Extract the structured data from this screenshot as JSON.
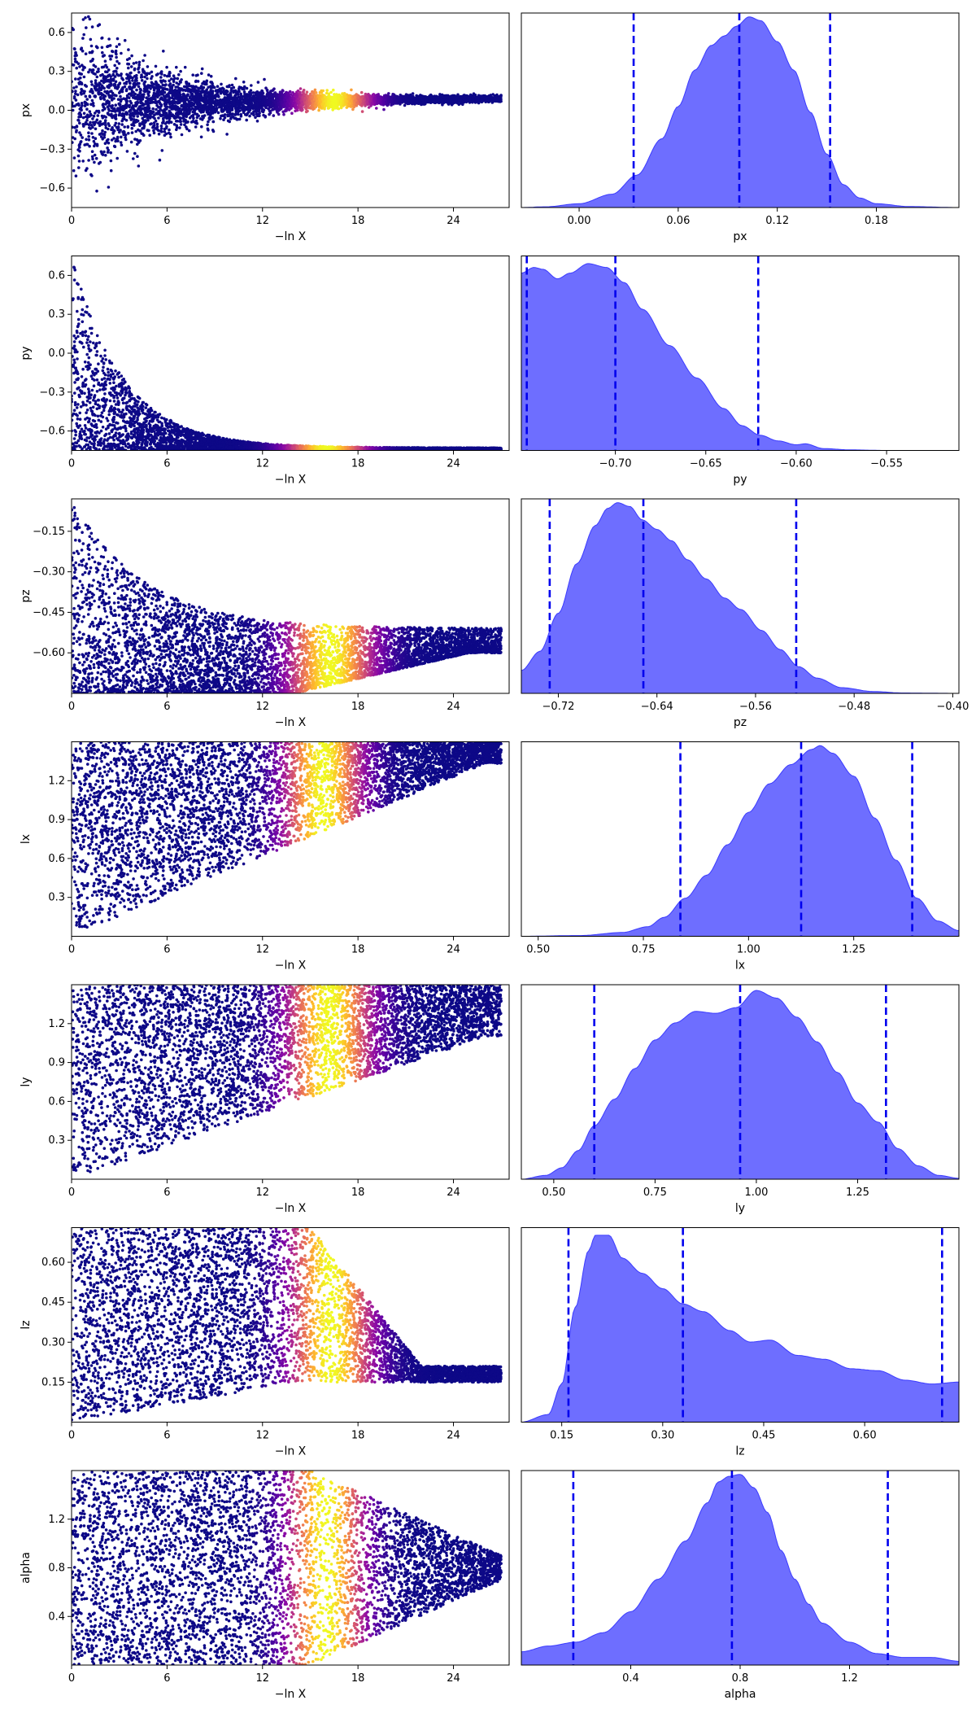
{
  "colors": {
    "kde_fill": "#6666ff",
    "kde_edge": "#3b3bff",
    "quantile_line": "#0000ee",
    "trace_low": "#1a0a80",
    "colormap": "plasma"
  },
  "chart_data": [
    {
      "type": "scatter",
      "param": "px",
      "xlabel": "−ln X",
      "ylabel": "px",
      "x_range": [
        0,
        27.5
      ],
      "y_range": [
        -0.75,
        0.75
      ],
      "xticks": [
        0,
        6,
        12,
        18,
        24
      ],
      "yticks": [
        -0.6,
        -0.3,
        0.0,
        0.3,
        0.6
      ],
      "ytick_labels": [
        "−0.6",
        "−0.3",
        "0.0",
        "0.3",
        "0.6"
      ],
      "shape": {
        "center_start": 0.05,
        "center_end": 0.09,
        "spread_start": 0.75,
        "spread_end": 0.02,
        "decay": 5.5,
        "shape": "funnel"
      },
      "color_peak": 16.5,
      "color_width": 2.2
    },
    {
      "type": "area",
      "param": "px",
      "xlabel": "px",
      "x_range": [
        -0.035,
        0.23
      ],
      "xticks": [
        0.0,
        0.06,
        0.12,
        0.18
      ],
      "xtick_labels": [
        "0.00",
        "0.06",
        "0.12",
        "0.18"
      ],
      "quantiles": [
        0.033,
        0.097,
        0.152
      ],
      "density_profile": [
        [
          -0.035,
          0.0
        ],
        [
          -0.02,
          0.004
        ],
        [
          0.0,
          0.02
        ],
        [
          0.02,
          0.07
        ],
        [
          0.035,
          0.17
        ],
        [
          0.05,
          0.36
        ],
        [
          0.06,
          0.53
        ],
        [
          0.07,
          0.72
        ],
        [
          0.08,
          0.85
        ],
        [
          0.088,
          0.9
        ],
        [
          0.095,
          0.95
        ],
        [
          0.103,
          1.0
        ],
        [
          0.11,
          0.98
        ],
        [
          0.12,
          0.87
        ],
        [
          0.13,
          0.72
        ],
        [
          0.14,
          0.5
        ],
        [
          0.15,
          0.28
        ],
        [
          0.16,
          0.12
        ],
        [
          0.17,
          0.05
        ],
        [
          0.18,
          0.02
        ],
        [
          0.2,
          0.005
        ],
        [
          0.23,
          0.0
        ]
      ]
    },
    {
      "type": "scatter",
      "param": "py",
      "xlabel": "−ln X",
      "ylabel": "py",
      "x_range": [
        0,
        27.5
      ],
      "y_range": [
        -0.75,
        0.75
      ],
      "xticks": [
        0,
        6,
        12,
        18,
        24
      ],
      "yticks": [
        -0.6,
        -0.3,
        0.0,
        0.3,
        0.6
      ],
      "ytick_labels": [
        "−0.6",
        "−0.3",
        "0.0",
        "0.3",
        "0.6"
      ],
      "shape": {
        "upper_start": 0.75,
        "upper_end": -0.73,
        "decay": 3.2,
        "lower": -0.75,
        "shape": "decay"
      },
      "color_peak": 16.0,
      "color_width": 2.4
    },
    {
      "type": "area",
      "param": "py",
      "xlabel": "py",
      "x_range": [
        -0.752,
        -0.51
      ],
      "xticks": [
        -0.7,
        -0.65,
        -0.6,
        -0.55
      ],
      "xtick_labels": [
        "−0.70",
        "−0.65",
        "−0.60",
        "−0.55"
      ],
      "quantiles": [
        -0.749,
        -0.7,
        -0.621
      ],
      "density_profile": [
        [
          -0.752,
          0.93
        ],
        [
          -0.745,
          0.96
        ],
        [
          -0.74,
          0.95
        ],
        [
          -0.732,
          0.9
        ],
        [
          -0.725,
          0.93
        ],
        [
          -0.715,
          0.98
        ],
        [
          -0.705,
          0.96
        ],
        [
          -0.695,
          0.88
        ],
        [
          -0.685,
          0.74
        ],
        [
          -0.67,
          0.55
        ],
        [
          -0.655,
          0.38
        ],
        [
          -0.64,
          0.22
        ],
        [
          -0.63,
          0.13
        ],
        [
          -0.62,
          0.08
        ],
        [
          -0.61,
          0.05
        ],
        [
          -0.6,
          0.03
        ],
        [
          -0.595,
          0.035
        ],
        [
          -0.585,
          0.01
        ],
        [
          -0.57,
          0.003
        ],
        [
          -0.55,
          0.0
        ],
        [
          -0.51,
          0.0
        ]
      ]
    },
    {
      "type": "scatter",
      "param": "pz",
      "xlabel": "−ln X",
      "ylabel": "pz",
      "x_range": [
        0,
        27.5
      ],
      "y_range": [
        -0.75,
        -0.03
      ],
      "xticks": [
        0,
        6,
        12,
        18,
        24
      ],
      "yticks": [
        -0.6,
        -0.45,
        -0.3,
        -0.15
      ],
      "ytick_labels": [
        "−0.60",
        "−0.45",
        "−0.30",
        "−0.15"
      ],
      "shape": {
        "upper_start": -0.03,
        "upper_end": -0.51,
        "decay": 4.5,
        "lower_start": -0.75,
        "lower_end": -0.6,
        "lower_onset": 14,
        "shape": "band"
      },
      "color_peak": 16.3,
      "color_width": 2.6
    },
    {
      "type": "area",
      "param": "pz",
      "xlabel": "pz",
      "x_range": [
        -0.75,
        -0.395
      ],
      "xticks": [
        -0.72,
        -0.64,
        -0.56,
        -0.48,
        -0.4
      ],
      "xtick_labels": [
        "−0.72",
        "−0.64",
        "−0.56",
        "−0.48",
        "−0.40"
      ],
      "quantiles": [
        -0.727,
        -0.651,
        -0.527
      ],
      "density_profile": [
        [
          -0.75,
          0.12
        ],
        [
          -0.735,
          0.22
        ],
        [
          -0.72,
          0.42
        ],
        [
          -0.705,
          0.68
        ],
        [
          -0.69,
          0.88
        ],
        [
          -0.68,
          0.97
        ],
        [
          -0.672,
          1.0
        ],
        [
          -0.662,
          0.98
        ],
        [
          -0.652,
          0.91
        ],
        [
          -0.64,
          0.86
        ],
        [
          -0.628,
          0.8
        ],
        [
          -0.615,
          0.7
        ],
        [
          -0.6,
          0.6
        ],
        [
          -0.585,
          0.5
        ],
        [
          -0.572,
          0.44
        ],
        [
          -0.555,
          0.33
        ],
        [
          -0.54,
          0.23
        ],
        [
          -0.525,
          0.14
        ],
        [
          -0.51,
          0.08
        ],
        [
          -0.49,
          0.03
        ],
        [
          -0.465,
          0.01
        ],
        [
          -0.44,
          0.002
        ],
        [
          -0.395,
          0.0
        ]
      ]
    },
    {
      "type": "scatter",
      "param": "lx",
      "xlabel": "−ln X",
      "ylabel": "lx",
      "x_range": [
        0,
        27.5
      ],
      "y_range": [
        0.0,
        1.5
      ],
      "xticks": [
        0,
        6,
        12,
        18,
        24
      ],
      "yticks": [
        0.3,
        0.6,
        0.9,
        1.2
      ],
      "ytick_labels": [
        "0.3",
        "0.6",
        "0.9",
        "1.2"
      ],
      "shape": {
        "lower_start": 0.0,
        "lower_end": 1.33,
        "upper": 1.5,
        "shape": "wedge_up"
      },
      "color_peak": 15.8,
      "color_width": 2.4
    },
    {
      "type": "area",
      "param": "lx",
      "xlabel": "lx",
      "x_range": [
        0.46,
        1.5
      ],
      "xticks": [
        0.5,
        0.75,
        1.0,
        1.25
      ],
      "xtick_labels": [
        "0.50",
        "0.75",
        "1.00",
        "1.25"
      ],
      "quantiles": [
        0.838,
        1.125,
        1.389
      ],
      "density_profile": [
        [
          0.46,
          0.0
        ],
        [
          0.6,
          0.004
        ],
        [
          0.7,
          0.02
        ],
        [
          0.76,
          0.05
        ],
        [
          0.8,
          0.1
        ],
        [
          0.85,
          0.2
        ],
        [
          0.9,
          0.32
        ],
        [
          0.95,
          0.48
        ],
        [
          1.0,
          0.65
        ],
        [
          1.05,
          0.8
        ],
        [
          1.1,
          0.9
        ],
        [
          1.15,
          0.98
        ],
        [
          1.17,
          1.0
        ],
        [
          1.2,
          0.96
        ],
        [
          1.25,
          0.84
        ],
        [
          1.3,
          0.62
        ],
        [
          1.35,
          0.4
        ],
        [
          1.4,
          0.2
        ],
        [
          1.45,
          0.08
        ],
        [
          1.5,
          0.03
        ]
      ]
    },
    {
      "type": "scatter",
      "param": "ly",
      "xlabel": "−ln X",
      "ylabel": "ly",
      "x_range": [
        0,
        27.5
      ],
      "y_range": [
        0.0,
        1.5
      ],
      "xticks": [
        0,
        6,
        12,
        18,
        24
      ],
      "yticks": [
        0.3,
        0.6,
        0.9,
        1.2
      ],
      "ytick_labels": [
        "0.3",
        "0.6",
        "0.9",
        "1.2"
      ],
      "shape": {
        "lower_start": 0.0,
        "lower_end": 1.1,
        "upper": 1.5,
        "shape": "wedge_up"
      },
      "color_peak": 16.2,
      "color_width": 2.6
    },
    {
      "type": "area",
      "param": "ly",
      "xlabel": "ly",
      "x_range": [
        0.42,
        1.5
      ],
      "xticks": [
        0.5,
        0.75,
        1.0,
        1.25
      ],
      "xtick_labels": [
        "0.50",
        "0.75",
        "1.00",
        "1.25"
      ],
      "quantiles": [
        0.6,
        0.96,
        1.32
      ],
      "density_profile": [
        [
          0.42,
          0.0
        ],
        [
          0.48,
          0.02
        ],
        [
          0.52,
          0.06
        ],
        [
          0.56,
          0.15
        ],
        [
          0.6,
          0.28
        ],
        [
          0.65,
          0.42
        ],
        [
          0.7,
          0.58
        ],
        [
          0.75,
          0.73
        ],
        [
          0.8,
          0.82
        ],
        [
          0.85,
          0.88
        ],
        [
          0.9,
          0.87
        ],
        [
          0.95,
          0.9
        ],
        [
          1.0,
          0.99
        ],
        [
          1.05,
          0.95
        ],
        [
          1.1,
          0.85
        ],
        [
          1.15,
          0.72
        ],
        [
          1.2,
          0.56
        ],
        [
          1.25,
          0.4
        ],
        [
          1.3,
          0.3
        ],
        [
          1.35,
          0.16
        ],
        [
          1.4,
          0.07
        ],
        [
          1.45,
          0.02
        ],
        [
          1.5,
          0.005
        ]
      ]
    },
    {
      "type": "scatter",
      "param": "lz",
      "xlabel": "−ln X",
      "ylabel": "lz",
      "x_range": [
        0,
        27.5
      ],
      "y_range": [
        0.0,
        0.73
      ],
      "xticks": [
        0,
        6,
        12,
        18,
        24
      ],
      "yticks": [
        0.15,
        0.3,
        0.45,
        0.6
      ],
      "ytick_labels": [
        "0.15",
        "0.30",
        "0.45",
        "0.60"
      ],
      "shape": {
        "lower_start": 0.0,
        "lower_end": 0.15,
        "upper": 0.73,
        "upper_end": 0.21,
        "upper_onset": 15,
        "shape": "drop"
      },
      "color_peak": 16.3,
      "color_width": 2.5
    },
    {
      "type": "area",
      "param": "lz",
      "xlabel": "lz",
      "x_range": [
        0.09,
        0.74
      ],
      "xticks": [
        0.15,
        0.3,
        0.45,
        0.6
      ],
      "xtick_labels": [
        "0.15",
        "0.30",
        "0.45",
        "0.60"
      ],
      "quantiles": [
        0.16,
        0.33,
        0.715
      ],
      "density_profile": [
        [
          0.09,
          0.0
        ],
        [
          0.13,
          0.04
        ],
        [
          0.15,
          0.2
        ],
        [
          0.17,
          0.6
        ],
        [
          0.19,
          0.9
        ],
        [
          0.2,
          0.98
        ],
        [
          0.22,
          0.98
        ],
        [
          0.24,
          0.86
        ],
        [
          0.27,
          0.78
        ],
        [
          0.3,
          0.7
        ],
        [
          0.33,
          0.62
        ],
        [
          0.36,
          0.58
        ],
        [
          0.4,
          0.48
        ],
        [
          0.43,
          0.42
        ],
        [
          0.46,
          0.43
        ],
        [
          0.5,
          0.35
        ],
        [
          0.54,
          0.33
        ],
        [
          0.58,
          0.28
        ],
        [
          0.62,
          0.27
        ],
        [
          0.66,
          0.22
        ],
        [
          0.7,
          0.2
        ],
        [
          0.74,
          0.21
        ]
      ]
    },
    {
      "type": "scatter",
      "param": "alpha",
      "xlabel": "−ln X",
      "ylabel": "alpha",
      "x_range": [
        0,
        27.5
      ],
      "y_range": [
        0.0,
        1.6
      ],
      "xticks": [
        0,
        6,
        12,
        18,
        24
      ],
      "yticks": [
        0.4,
        0.8,
        1.2
      ],
      "ytick_labels": [
        "0.4",
        "0.8",
        "1.2"
      ],
      "shape": {
        "center_start": 0.8,
        "center_end": 0.82,
        "spread_start": 0.8,
        "spread_end": 0.1,
        "onset": 15,
        "shape": "taper"
      },
      "color_peak": 16.0,
      "color_width": 2.3
    },
    {
      "type": "area",
      "param": "alpha",
      "xlabel": "alpha",
      "x_range": [
        0.0,
        1.6
      ],
      "xticks": [
        0.4,
        0.8,
        1.2
      ],
      "xtick_labels": [
        "0.4",
        "0.8",
        "1.2"
      ],
      "quantiles": [
        0.19,
        0.77,
        1.34
      ],
      "density_profile": [
        [
          0.0,
          0.07
        ],
        [
          0.1,
          0.1
        ],
        [
          0.2,
          0.12
        ],
        [
          0.3,
          0.17
        ],
        [
          0.4,
          0.28
        ],
        [
          0.5,
          0.45
        ],
        [
          0.6,
          0.65
        ],
        [
          0.68,
          0.85
        ],
        [
          0.72,
          0.96
        ],
        [
          0.76,
          0.99
        ],
        [
          0.8,
          1.0
        ],
        [
          0.85,
          0.93
        ],
        [
          0.9,
          0.8
        ],
        [
          0.95,
          0.6
        ],
        [
          1.0,
          0.45
        ],
        [
          1.05,
          0.32
        ],
        [
          1.1,
          0.22
        ],
        [
          1.2,
          0.12
        ],
        [
          1.3,
          0.06
        ],
        [
          1.4,
          0.04
        ],
        [
          1.5,
          0.04
        ],
        [
          1.6,
          0.02
        ]
      ]
    }
  ]
}
